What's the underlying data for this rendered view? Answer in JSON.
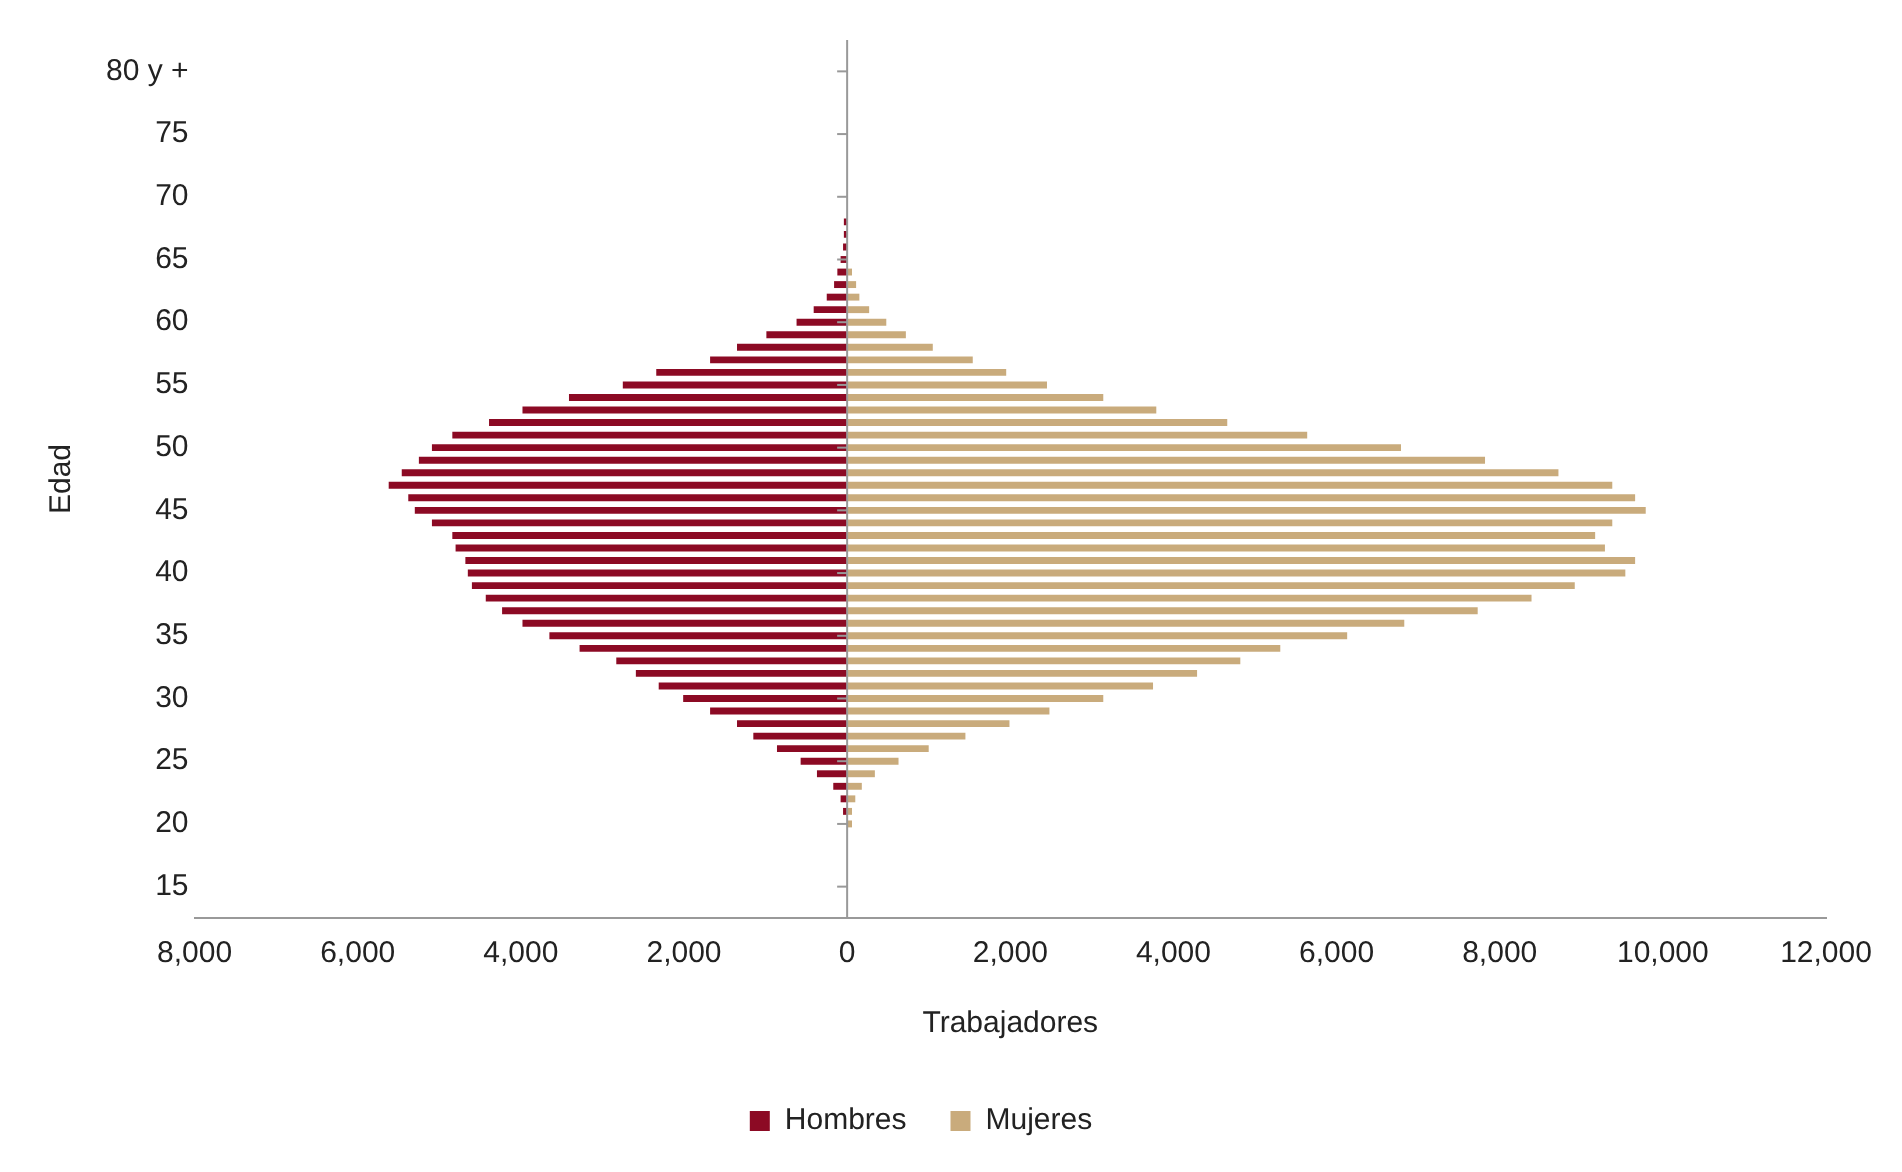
{
  "chart_data": {
    "type": "bar",
    "orientation": "horizontal",
    "stacked": true,
    "xlabel": "Trabajadores",
    "ylabel": "Edad",
    "legend": "bottom",
    "x": [
      20,
      21,
      22,
      23,
      24,
      25,
      26,
      27,
      28,
      29,
      30,
      31,
      32,
      33,
      34,
      35,
      36,
      37,
      38,
      39,
      40,
      41,
      42,
      43,
      44,
      45,
      46,
      47,
      48,
      49,
      50,
      51,
      52,
      53,
      54,
      55,
      56,
      57,
      58,
      59,
      60,
      61,
      62,
      63,
      64,
      65,
      66,
      67,
      68
    ],
    "series": [
      {
        "name": "Hombres",
        "color": "#8c0a24",
        "values": [
          0,
          -50,
          -80,
          -170,
          -370,
          -570,
          -860,
          -1150,
          -1350,
          -1680,
          -2010,
          -2310,
          -2590,
          -2830,
          -3280,
          -3650,
          -3980,
          -4230,
          -4430,
          -4600,
          -4650,
          -4680,
          -4800,
          -4840,
          -5090,
          -5300,
          -5380,
          -5620,
          -5460,
          -5250,
          -5090,
          -4840,
          -4390,
          -3980,
          -3410,
          -2750,
          -2340,
          -1680,
          -1350,
          -990,
          -620,
          -410,
          -250,
          -160,
          -120,
          -80,
          -50,
          -40,
          -40
        ]
      },
      {
        "name": "Mujeres",
        "color": "#c9ab7c",
        "values": [
          60,
          60,
          100,
          180,
          340,
          630,
          1000,
          1450,
          1990,
          2480,
          3140,
          3750,
          4290,
          4820,
          5310,
          6130,
          6830,
          7730,
          8390,
          8920,
          9540,
          9660,
          9290,
          9170,
          9380,
          9790,
          9660,
          9380,
          8720,
          7820,
          6790,
          5640,
          4660,
          3790,
          3140,
          2450,
          1950,
          1540,
          1050,
          720,
          480,
          270,
          150,
          110,
          60,
          0,
          0,
          0,
          0
        ]
      }
    ],
    "xlim": [
      -8000,
      12000
    ],
    "xticks": [
      {
        "value": -8000,
        "label": "8,000"
      },
      {
        "value": -6000,
        "label": "6,000"
      },
      {
        "value": -4000,
        "label": "4,000"
      },
      {
        "value": -2000,
        "label": "2,000"
      },
      0,
      {
        "value": 2000,
        "label": "2,000"
      },
      {
        "value": 4000,
        "label": "4,000"
      },
      {
        "value": 6000,
        "label": "6,000"
      },
      {
        "value": 8000,
        "label": "8,000"
      },
      {
        "value": 10000,
        "label": "10,000"
      },
      {
        "value": 12000,
        "label": "12,000"
      }
    ],
    "ylim": [
      15,
      80
    ],
    "yticks": [
      15,
      20,
      25,
      30,
      35,
      40,
      45,
      50,
      55,
      60,
      65,
      70,
      75,
      {
        "value": 80,
        "label": "80 y +"
      }
    ]
  }
}
